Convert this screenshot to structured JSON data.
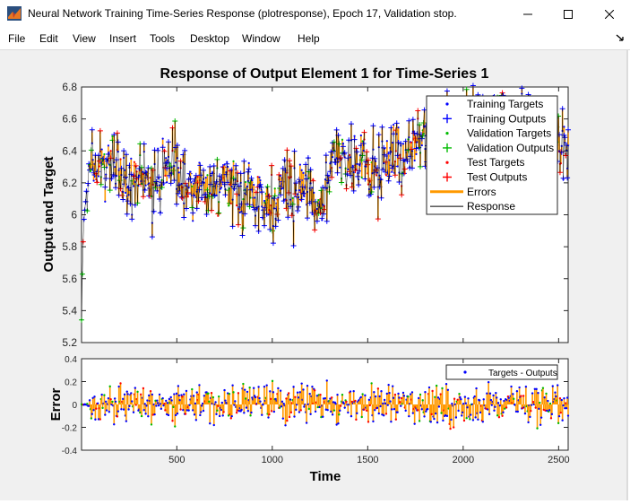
{
  "window": {
    "title": "Neural Network Training Time-Series Response (plotresponse), Epoch 17, Validation stop."
  },
  "menu": {
    "items": [
      "File",
      "Edit",
      "View",
      "Insert",
      "Tools",
      "Desktop",
      "Window",
      "Help"
    ]
  },
  "icons": {
    "app": "matlab-icon",
    "minimize": "minimize-icon",
    "maximize": "maximize-icon",
    "close": "close-icon",
    "dock": "dock-arrow-icon"
  },
  "colors": {
    "training": "#0000ff",
    "validation": "#00bb00",
    "test": "#ff0000",
    "errors": "#ff9900",
    "response": "#000000"
  },
  "chart_data": [
    {
      "type": "line",
      "title": "Response of Output Element 1 for Time-Series 1",
      "ylabel": "Output and Target",
      "xlabel": "",
      "xlim": [
        1,
        2550
      ],
      "ylim": [
        5.2,
        6.8
      ],
      "yticks": [
        "5.2",
        "5.4",
        "5.6",
        "5.8",
        "6",
        "6.2",
        "6.4",
        "6.6",
        "6.8"
      ],
      "grid": false,
      "legend_position": "top-right",
      "legend": [
        "Training Targets",
        "Training Outputs",
        "Validation Targets",
        "Validation Outputs",
        "Test Targets",
        "Test Outputs",
        "Errors",
        "Response"
      ],
      "trend": {
        "x": [
          1,
          10,
          30,
          60,
          100,
          150,
          200,
          250,
          300,
          400,
          500,
          600,
          700,
          800,
          900,
          1000,
          1100,
          1200,
          1250,
          1300,
          1350,
          1400,
          1450,
          1500,
          1600,
          1700,
          1800,
          1900,
          2000,
          2100,
          2200,
          2300,
          2400,
          2500,
          2550
        ],
        "y": [
          5.25,
          5.8,
          6.15,
          6.25,
          6.3,
          6.32,
          6.3,
          6.2,
          6.22,
          6.26,
          6.28,
          6.2,
          6.18,
          6.2,
          6.16,
          6.12,
          6.15,
          6.13,
          6.05,
          6.2,
          6.35,
          6.38,
          6.36,
          6.3,
          6.32,
          6.4,
          6.48,
          6.45,
          6.5,
          6.55,
          6.58,
          6.55,
          6.52,
          6.45,
          6.35
        ]
      }
    },
    {
      "type": "scatter",
      "title": "",
      "ylabel": "Error",
      "xlabel": "Time",
      "xlim": [
        1,
        2550
      ],
      "ylim": [
        -0.4,
        0.4
      ],
      "xticks": [
        "500",
        "1000",
        "1500",
        "2000",
        "2500"
      ],
      "yticks": [
        "-0.4",
        "-0.2",
        "0",
        "0.2",
        "0.4"
      ],
      "legend": [
        "Targets - Outputs"
      ],
      "legend_position": "top-right",
      "error_spread": 0.1
    }
  ]
}
